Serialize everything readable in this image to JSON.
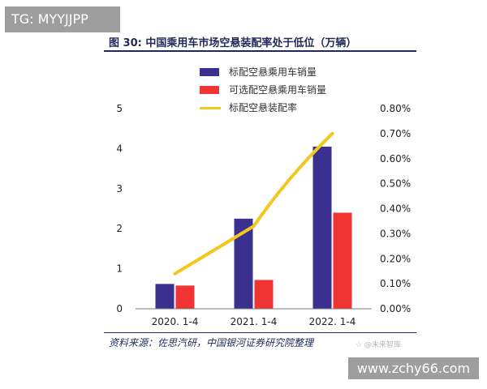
{
  "overlay": {
    "tg_label": "TG: MYYJJPP",
    "site_label": "www.zchy66.com",
    "small_watermark": "☆ @未来智库"
  },
  "figure": {
    "title": "图 30: 中国乘用车市场空悬装配率处于低位（万辆）",
    "source": "资料来源：佐思汽研，中国银河证券研究院整理"
  },
  "colors": {
    "standard_bar": "#3b2f8f",
    "optional_bar": "#f03434",
    "rate_line": "#f2c81e"
  },
  "chart_data": {
    "type": "bar",
    "categories": [
      "2020. 1-4",
      "2021. 1-4",
      "2022. 1-4"
    ],
    "series": [
      {
        "name": "标配空悬乘用车销量",
        "type": "bar",
        "axis": "left",
        "values": [
          0.62,
          2.25,
          4.05
        ]
      },
      {
        "name": "可选配空悬乘用车销量",
        "type": "bar",
        "axis": "left",
        "values": [
          0.58,
          0.72,
          2.4
        ]
      },
      {
        "name": "标配空悬装配率",
        "type": "line",
        "axis": "right",
        "values": [
          0.0014,
          0.0033,
          0.007
        ]
      }
    ],
    "ylim": [
      0,
      5
    ],
    "yticks": [
      "0",
      "1",
      "2",
      "3",
      "4",
      "5"
    ],
    "y2lim": [
      0,
      0.008
    ],
    "y2ticks": [
      "0.00%",
      "0.10%",
      "0.20%",
      "0.30%",
      "0.40%",
      "0.50%",
      "0.60%",
      "0.70%",
      "0.80%"
    ],
    "legend_position": "top-center",
    "grid": false
  }
}
